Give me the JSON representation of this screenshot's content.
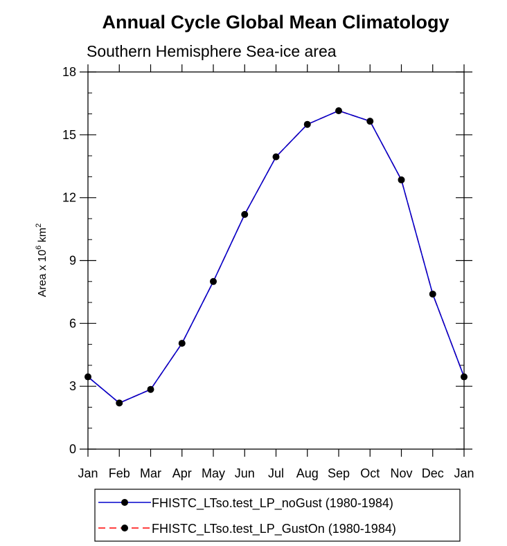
{
  "chart_data": {
    "type": "line",
    "title": "Annual Cycle Global Mean Climatology",
    "subtitle": "Southern Hemisphere Sea-ice area",
    "ylabel": {
      "prefix": "Area x 10",
      "exponent": "6",
      "unit": " km",
      "unit_exponent": "2"
    },
    "xlabel": "",
    "categories": [
      "Jan",
      "Feb",
      "Mar",
      "Apr",
      "May",
      "Jun",
      "Jul",
      "Aug",
      "Sep",
      "Oct",
      "Nov",
      "Dec",
      "Jan"
    ],
    "ylim": [
      0,
      18
    ],
    "yticks": [
      0,
      3,
      6,
      9,
      12,
      15,
      18
    ],
    "y_minor_step": 1,
    "series": [
      {
        "name": "FHISTC_LTso.test_LP_noGust (1980-1984)",
        "color": "#0000cc",
        "line_style": "solid",
        "values": [
          3.45,
          2.2,
          2.85,
          5.05,
          8.0,
          11.2,
          13.95,
          15.5,
          16.15,
          15.65,
          12.85,
          7.4,
          3.45
        ]
      },
      {
        "name": "FHISTC_LTso.test_LP_GustOn (1980-1984)",
        "color": "#ff0000",
        "line_style": "dashed",
        "values": [
          3.45,
          2.2,
          2.85,
          5.05,
          8.0,
          11.2,
          13.95,
          15.5,
          16.15,
          15.65,
          12.85,
          7.4,
          3.45
        ]
      }
    ],
    "marker_color": "#000000",
    "legend_position": "bottom"
  }
}
